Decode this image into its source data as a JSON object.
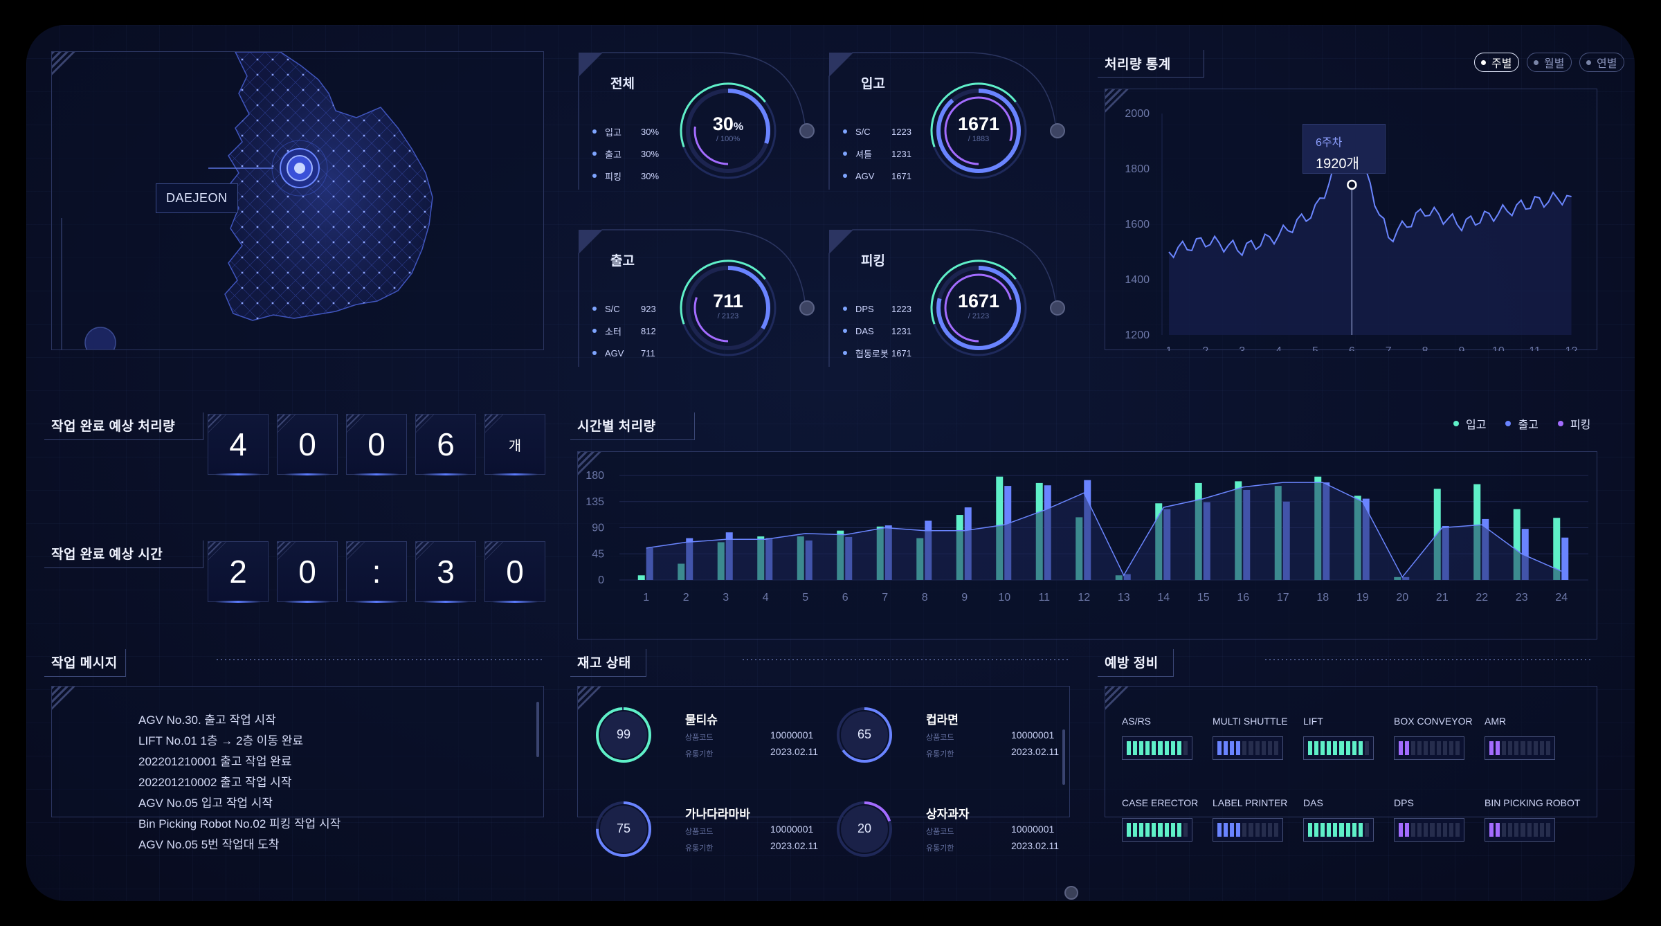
{
  "map": {
    "city_label": "DAEJEON"
  },
  "gauges": [
    {
      "title": "전체",
      "value": "30",
      "unit": "%",
      "sub": "/ 100%",
      "fraction": 0.3,
      "items": [
        {
          "k": "입고",
          "v": "30%"
        },
        {
          "k": "출고",
          "v": "30%"
        },
        {
          "k": "피킹",
          "v": "30%"
        }
      ]
    },
    {
      "title": "입고",
      "value": "1671",
      "unit": "",
      "sub": "/ 1883",
      "fraction": 0.887,
      "items": [
        {
          "k": "S/C",
          "v": "1223"
        },
        {
          "k": "셔틀",
          "v": "1231"
        },
        {
          "k": "AGV",
          "v": "1671"
        }
      ]
    },
    {
      "title": "출고",
      "value": "711",
      "unit": "",
      "sub": "/ 2123",
      "fraction": 0.335,
      "items": [
        {
          "k": "S/C",
          "v": "923"
        },
        {
          "k": "소터",
          "v": "812"
        },
        {
          "k": "AGV",
          "v": "711"
        }
      ]
    },
    {
      "title": "피킹",
      "value": "1671",
      "unit": "",
      "sub": "/ 2123",
      "fraction": 0.787,
      "items": [
        {
          "k": "DPS",
          "v": "1223"
        },
        {
          "k": "DAS",
          "v": "1231"
        },
        {
          "k": "협동로봇",
          "v": "1671"
        }
      ]
    }
  ],
  "throughput_stats": {
    "title": "처리량 통계",
    "toggles": [
      {
        "label": "주별",
        "active": true
      },
      {
        "label": "월별",
        "active": false
      },
      {
        "label": "연별",
        "active": false
      }
    ],
    "tooltip": {
      "label": "6주차",
      "value": "1920개"
    }
  },
  "expected_qty": {
    "title": "작업 완료 예상 처리량",
    "digits": [
      "4",
      "0",
      "0",
      "6"
    ],
    "unit": "개"
  },
  "expected_time": {
    "title": "작업 완료 예상 시간",
    "digits": [
      "2",
      "0",
      ":",
      "3",
      "0"
    ]
  },
  "hourly": {
    "title": "시간별 처리량",
    "legend": [
      "입고",
      "출고",
      "피킹"
    ]
  },
  "messages": {
    "title": "작업 메시지",
    "items": [
      "AGV No.30. 출고 작업 시작",
      "LIFT No.01 1층 → 2층 이동 완료",
      "202201210001 출고 작업 완료",
      "202201210002 출고 작업 시작",
      "AGV No.05 입고 작업 시작",
      "Bin Picking Robot No.02 피킹 작업 시작",
      "AGV No.05 5번 작업대 도착"
    ]
  },
  "inventory": {
    "title": "재고 상태",
    "code_label": "상품코드",
    "expiry_label": "유통기한",
    "items": [
      {
        "name": "물티슈",
        "pct": "99",
        "fraction": 0.99,
        "color": "#5ff0c8",
        "code": "10000001",
        "expiry": "2023.02.11"
      },
      {
        "name": "컵라면",
        "pct": "65",
        "fraction": 0.65,
        "color": "#6a84ff",
        "code": "10000001",
        "expiry": "2023.02.11"
      },
      {
        "name": "가나다라마바",
        "pct": "75",
        "fraction": 0.75,
        "color": "#6a84ff",
        "code": "10000001",
        "expiry": "2023.02.11"
      },
      {
        "name": "상자과자",
        "pct": "20",
        "fraction": 0.2,
        "color": "#a36cff",
        "code": "10000001",
        "expiry": "2023.02.11"
      }
    ]
  },
  "maintenance": {
    "title": "예방 정비",
    "items": [
      {
        "label": "AS/RS",
        "level": 0.9,
        "color": "#5ff0c8"
      },
      {
        "label": "MULTI SHUTTLE",
        "level": 0.4,
        "color": "#6a84ff"
      },
      {
        "label": "LIFT",
        "level": 0.9,
        "color": "#5ff0c8"
      },
      {
        "label": "BOX CONVEYOR",
        "level": 0.2,
        "color": "#a36cff"
      },
      {
        "label": "AMR",
        "level": 0.2,
        "color": "#a36cff"
      },
      {
        "label": "CASE ERECTOR",
        "level": 0.9,
        "color": "#5ff0c8"
      },
      {
        "label": "LABEL PRINTER",
        "level": 0.4,
        "color": "#6a84ff"
      },
      {
        "label": "DAS",
        "level": 0.9,
        "color": "#5ff0c8"
      },
      {
        "label": "DPS",
        "level": 0.2,
        "color": "#a36cff"
      },
      {
        "label": "BIN PICKING ROBOT",
        "level": 0.2,
        "color": "#a36cff"
      }
    ]
  },
  "colors": {
    "cyan": "#5ff0c8",
    "blue": "#6a84ff",
    "purple": "#a36cff"
  },
  "chart_data": [
    {
      "type": "line",
      "x": [
        1,
        2,
        3,
        4,
        5,
        6,
        7,
        8,
        9,
        10,
        11,
        12
      ],
      "yticks": [
        1200,
        1400,
        1600,
        1800,
        2000
      ],
      "ylim": [
        1200,
        2000
      ],
      "series": [
        {
          "values": [
            1500,
            1540,
            1510,
            1560,
            1650,
            1920,
            1550,
            1650,
            1600,
            1640,
            1680,
            1700
          ]
        }
      ],
      "highlight_x": 6
    },
    {
      "type": "bar",
      "categories": [
        "1",
        "2",
        "3",
        "4",
        "5",
        "6",
        "7",
        "8",
        "9",
        "10",
        "11",
        "12",
        "13",
        "14",
        "15",
        "16",
        "17",
        "18",
        "19",
        "20",
        "21",
        "22",
        "23",
        "24"
      ],
      "yticks": [
        0,
        45,
        90,
        135,
        180
      ],
      "ylim": [
        0,
        180
      ],
      "series": [
        {
          "name": "입고",
          "values": [
            8,
            28,
            65,
            75,
            75,
            85,
            92,
            72,
            112,
            178,
            167,
            108,
            8,
            132,
            167,
            170,
            162,
            178,
            145,
            5,
            157,
            165,
            122,
            107
          ]
        },
        {
          "name": "출고",
          "values": [
            55,
            72,
            82,
            72,
            68,
            74,
            94,
            102,
            125,
            162,
            163,
            172,
            10,
            122,
            134,
            155,
            135,
            168,
            140,
            5,
            93,
            105,
            88,
            73
          ]
        },
        {
          "name": "피킹",
          "values": [
            55,
            65,
            70,
            70,
            80,
            78,
            90,
            85,
            85,
            95,
            120,
            150,
            8,
            125,
            140,
            160,
            168,
            168,
            135,
            5,
            90,
            95,
            45,
            15
          ]
        }
      ]
    }
  ]
}
